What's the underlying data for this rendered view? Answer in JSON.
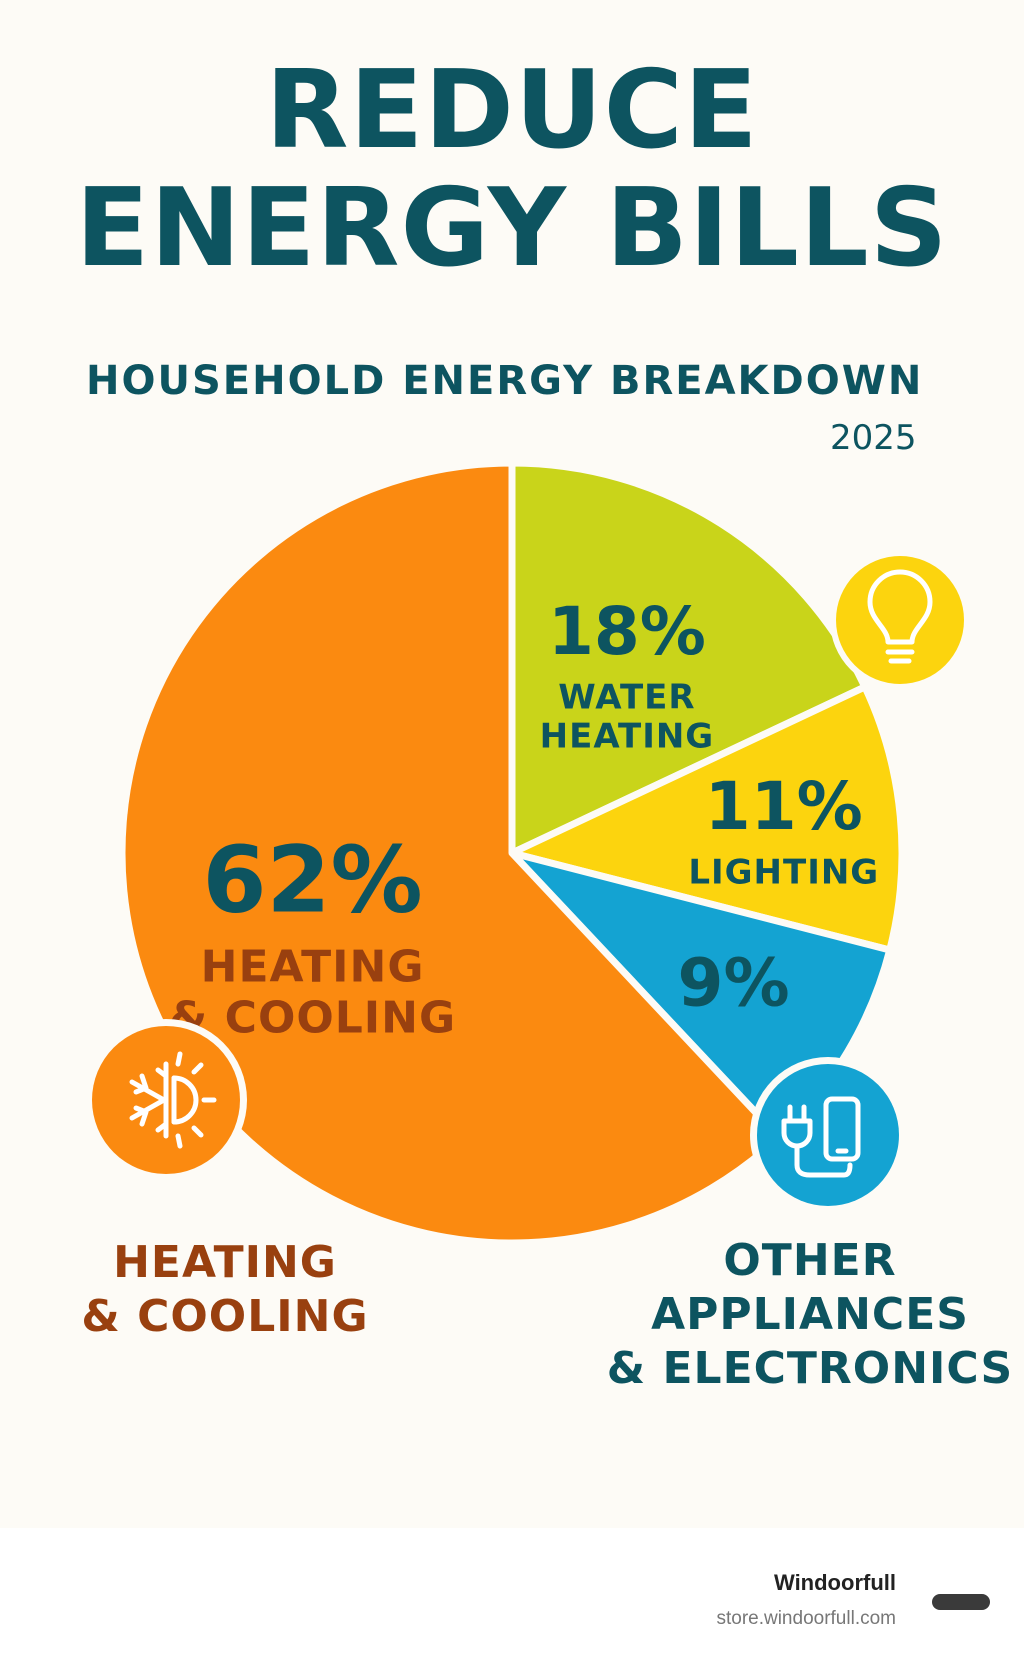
{
  "header": {
    "title_line1": "REDUCE",
    "title_line2": "ENERGY BILLS",
    "subtitle": "HOUSEHOLD ENERGY BREAKDOWN",
    "year": "2025"
  },
  "chart_data": {
    "type": "pie",
    "title": "HOUSEHOLD ENERGY BREAKDOWN",
    "slices": [
      {
        "value": 18,
        "label": "18%",
        "name_lines": [
          "WATER",
          "HEATING"
        ],
        "color": "#c9d41a",
        "text_color": "#0d5460"
      },
      {
        "value": 11,
        "label": "11%",
        "name_lines": [
          "LIGHTING"
        ],
        "color": "#fcd40e",
        "text_color": "#0d5460"
      },
      {
        "value": 9,
        "label": "9%",
        "name_lines": [],
        "color": "#14a3d2",
        "text_color": "#0d5460"
      },
      {
        "value": 62,
        "label": "62%",
        "name_lines": [
          "HEATING",
          "& COOLING"
        ],
        "color": "#fb8a10",
        "text_color": "#99400f",
        "pct_color": "#0d5460"
      }
    ]
  },
  "icons": [
    {
      "name": "lightbulb-icon",
      "color": "#fcd40e"
    },
    {
      "name": "plug-phone-icon",
      "color": "#14a3d2"
    },
    {
      "name": "snowflake-sun-icon",
      "color": "#fb8a10"
    }
  ],
  "labels": {
    "heating_line1": "HEATING",
    "heating_line2": "& COOLING",
    "other_line1": "OTHER",
    "other_line2": "APPLIANCES",
    "other_line3": "& ELECTRONICS"
  },
  "footer": {
    "brand": "Windoorfull",
    "url": "store.windoorfull.com"
  }
}
